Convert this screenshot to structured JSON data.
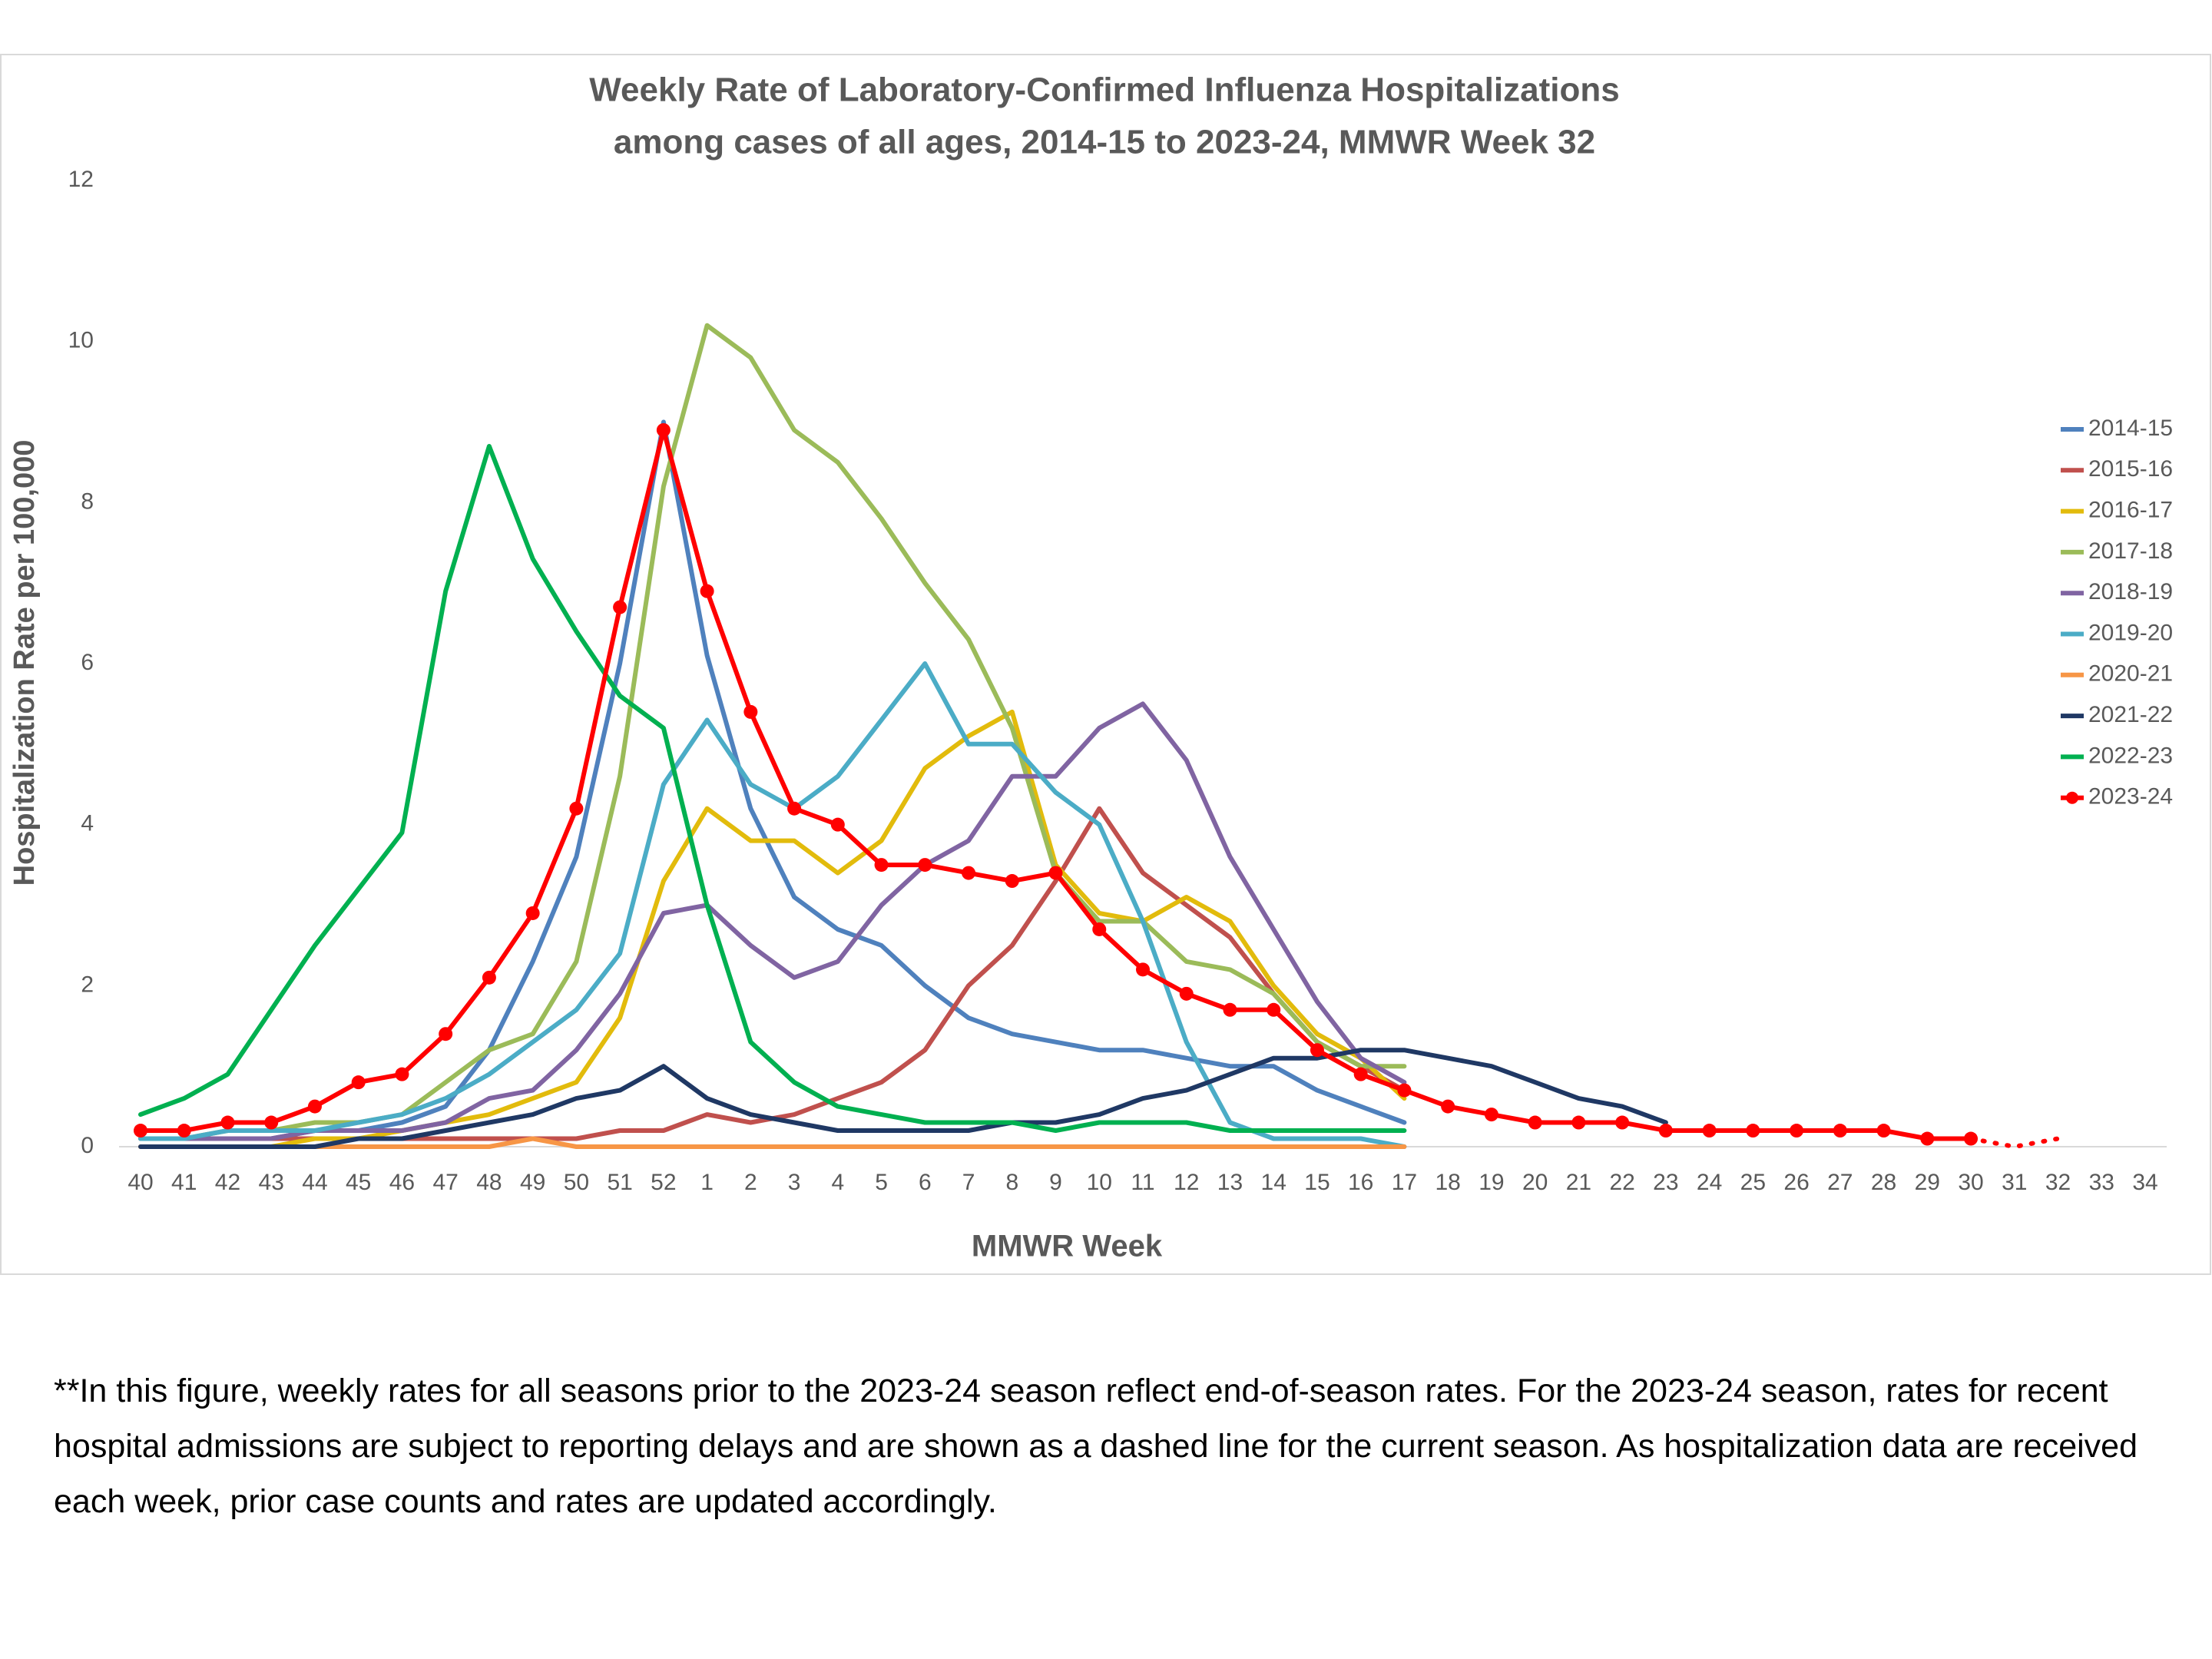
{
  "chart_data": {
    "type": "line",
    "title": [
      "Weekly Rate of Laboratory-Confirmed Influenza Hospitalizations",
      "among cases of all ages, 2014-15 to 2023-24, MMWR Week 32"
    ],
    "x_label": "MMWR Week",
    "y_label": "Hospitalization Rate per 100,000",
    "categories": [
      "40",
      "41",
      "42",
      "43",
      "44",
      "45",
      "46",
      "47",
      "48",
      "49",
      "50",
      "51",
      "52",
      "1",
      "2",
      "3",
      "4",
      "5",
      "6",
      "7",
      "8",
      "9",
      "10",
      "11",
      "12",
      "13",
      "14",
      "15",
      "16",
      "17",
      "18",
      "19",
      "20",
      "21",
      "22",
      "23",
      "24",
      "25",
      "26",
      "27",
      "28",
      "29",
      "30",
      "31",
      "32",
      "33",
      "34"
    ],
    "ylim": [
      0,
      12
    ],
    "yticks": [
      0,
      2,
      4,
      6,
      8,
      10,
      12
    ],
    "grid": false,
    "legend": "right",
    "series": [
      {
        "name": "2014-15",
        "color": "#4f81bd",
        "values": [
          0.1,
          0.1,
          0.1,
          0.1,
          0.2,
          0.2,
          0.3,
          0.5,
          1.2,
          2.3,
          3.6,
          6,
          9,
          6.1,
          4.2,
          3.1,
          2.7,
          2.5,
          2.0,
          1.6,
          1.4,
          1.3,
          1.2,
          1.2,
          1.1,
          1.0,
          1.0,
          0.7,
          0.5,
          0.3,
          null,
          null,
          null,
          null,
          null,
          null,
          null,
          null,
          null,
          null,
          null,
          null,
          null,
          null,
          null,
          null,
          null
        ]
      },
      {
        "name": "2015-16",
        "color": "#c0504d",
        "values": [
          0.1,
          0.1,
          0.1,
          0.1,
          0.1,
          0.1,
          0.1,
          0.1,
          0.1,
          0.1,
          0.1,
          0.2,
          0.2,
          0.4,
          0.3,
          0.4,
          0.6,
          0.8,
          1.2,
          2.0,
          2.5,
          3.3,
          4.2,
          3.4,
          3.0,
          2.6,
          1.9,
          1.3,
          1.0,
          0.7,
          null,
          null,
          null,
          null,
          null,
          null,
          null,
          null,
          null,
          null,
          null,
          null,
          null,
          null,
          null,
          null,
          null
        ]
      },
      {
        "name": "2016-17",
        "color": "#e2bb0c",
        "values": [
          0,
          0,
          0,
          0,
          0.1,
          0.1,
          0.2,
          0.3,
          0.4,
          0.6,
          0.8,
          1.6,
          3.3,
          4.2,
          3.8,
          3.8,
          3.4,
          3.8,
          4.7,
          5.1,
          5.4,
          3.5,
          2.9,
          2.8,
          3.1,
          2.8,
          2.0,
          1.4,
          1.1,
          0.6,
          null,
          null,
          null,
          null,
          null,
          null,
          null,
          null,
          null,
          null,
          null,
          null,
          null,
          null,
          null,
          null,
          null
        ]
      },
      {
        "name": "2017-18",
        "color": "#9bbb59",
        "values": [
          0.1,
          0.1,
          0.2,
          0.2,
          0.3,
          0.3,
          0.4,
          0.8,
          1.2,
          1.4,
          2.3,
          4.6,
          8.2,
          10.2,
          9.8,
          8.9,
          8.5,
          7.8,
          7.0,
          6.3,
          5.2,
          3.4,
          2.8,
          2.8,
          2.3,
          2.2,
          1.9,
          1.3,
          1.0,
          1.0,
          null,
          null,
          null,
          null,
          null,
          null,
          null,
          null,
          null,
          null,
          null,
          null,
          null,
          null,
          null,
          null,
          null
        ]
      },
      {
        "name": "2018-19",
        "color": "#8064a2",
        "values": [
          0.1,
          0.1,
          0.1,
          0.1,
          0.2,
          0.2,
          0.2,
          0.3,
          0.6,
          0.7,
          1.2,
          1.9,
          2.9,
          3.0,
          2.5,
          2.1,
          2.3,
          3.0,
          3.5,
          3.8,
          4.6,
          4.6,
          5.2,
          5.5,
          4.8,
          3.6,
          2.7,
          1.8,
          1.1,
          0.8,
          null,
          null,
          null,
          null,
          null,
          null,
          null,
          null,
          null,
          null,
          null,
          null,
          null,
          null,
          null,
          null,
          null
        ]
      },
      {
        "name": "2019-20",
        "color": "#4bacc6",
        "values": [
          0.1,
          0.1,
          0.2,
          0.2,
          0.2,
          0.3,
          0.4,
          0.6,
          0.9,
          1.3,
          1.7,
          2.4,
          4.5,
          5.3,
          4.5,
          4.2,
          4.6,
          5.3,
          6.0,
          5.0,
          5.0,
          4.4,
          4.0,
          2.8,
          1.3,
          0.3,
          0.1,
          0.1,
          0.1,
          0,
          null,
          null,
          null,
          null,
          null,
          null,
          null,
          null,
          null,
          null,
          null,
          null,
          null,
          null,
          null,
          null,
          null
        ]
      },
      {
        "name": "2020-21",
        "color": "#f79646",
        "values": [
          0,
          0,
          0,
          0,
          0,
          0,
          0,
          0,
          0,
          0.1,
          0,
          0,
          0,
          0,
          0,
          0,
          0,
          0,
          0,
          0,
          0,
          0,
          0,
          0,
          0,
          0,
          0,
          0,
          0,
          0,
          null,
          null,
          null,
          null,
          null,
          null,
          null,
          null,
          null,
          null,
          null,
          null,
          null,
          null,
          null,
          null,
          null
        ]
      },
      {
        "name": "2021-22",
        "color": "#1f3864",
        "values": [
          0,
          0,
          0,
          0,
          0,
          0.1,
          0.1,
          0.2,
          0.3,
          0.4,
          0.6,
          0.7,
          1.0,
          0.6,
          0.4,
          0.3,
          0.2,
          0.2,
          0.2,
          0.2,
          0.3,
          0.3,
          0.4,
          0.6,
          0.7,
          0.9,
          1.1,
          1.1,
          1.2,
          1.2,
          1.1,
          1.0,
          0.8,
          0.6,
          0.5,
          0.3,
          null,
          null,
          null,
          null,
          null,
          null,
          null,
          null,
          null,
          null,
          null
        ]
      },
      {
        "name": "2022-23",
        "color": "#00b050",
        "values": [
          0.4,
          0.6,
          0.9,
          1.7,
          2.5,
          3.2,
          3.9,
          6.9,
          8.7,
          7.3,
          6.4,
          5.6,
          5.2,
          3.0,
          1.3,
          0.8,
          0.5,
          0.4,
          0.3,
          0.3,
          0.3,
          0.2,
          0.3,
          0.3,
          0.3,
          0.2,
          0.2,
          0.2,
          0.2,
          0.2,
          null,
          null,
          null,
          null,
          null,
          null,
          null,
          null,
          null,
          null,
          null,
          null,
          null,
          null,
          null,
          null,
          null
        ]
      },
      {
        "name": "2023-24",
        "color": "#ff0000",
        "marker": true,
        "dashed_from": "30",
        "values": [
          0.2,
          0.2,
          0.3,
          0.3,
          0.5,
          0.8,
          0.9,
          1.4,
          2.1,
          2.9,
          4.2,
          6.7,
          8.9,
          6.9,
          5.4,
          4.2,
          4.0,
          3.5,
          3.5,
          3.4,
          3.3,
          3.4,
          2.7,
          2.2,
          1.9,
          1.7,
          1.7,
          1.2,
          0.9,
          0.7,
          0.5,
          0.4,
          0.3,
          0.3,
          0.3,
          0.2,
          0.2,
          0.2,
          0.2,
          0.2,
          0.2,
          0.1,
          0.1,
          0,
          0.1,
          null,
          null
        ]
      }
    ]
  },
  "footnote": "**In this figure, weekly rates for all seasons prior to the 2023-24 season reflect end-of-season rates. For the 2023-24 season, rates for recent hospital admissions are subject to reporting delays and are shown as a dashed line for the current season. As hospitalization data are received each week, prior case counts and rates are updated accordingly."
}
